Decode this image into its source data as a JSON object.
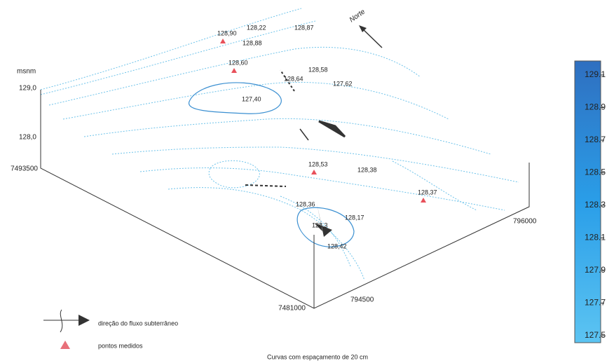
{
  "axes": {
    "z_unit": "msnm",
    "z_ticks": [
      "129,0",
      "128,0"
    ],
    "y_ticks": [
      "7493500",
      "7481000"
    ],
    "x_ticks": [
      "796000",
      "794500"
    ]
  },
  "north": "Norte",
  "points": [
    "128,90",
    "128,22",
    "128,87",
    "128,88",
    "128,60",
    "128,58",
    "128,64",
    "127,62",
    "127,40",
    "128,53",
    "128,38",
    "128,37",
    "128,36",
    "128,17",
    "128,3",
    "128,42"
  ],
  "colorbar": {
    "ticks": [
      "129.1",
      "128.9",
      "128.7",
      "128.5",
      "128.3",
      "128.1",
      "127.9",
      "127.7",
      "127.5"
    ]
  },
  "legend": {
    "flow": "direção do fluxo subterrâneo",
    "points": "pontos medidos"
  },
  "caption": "Curvas com espaçamento de 20 cm"
}
